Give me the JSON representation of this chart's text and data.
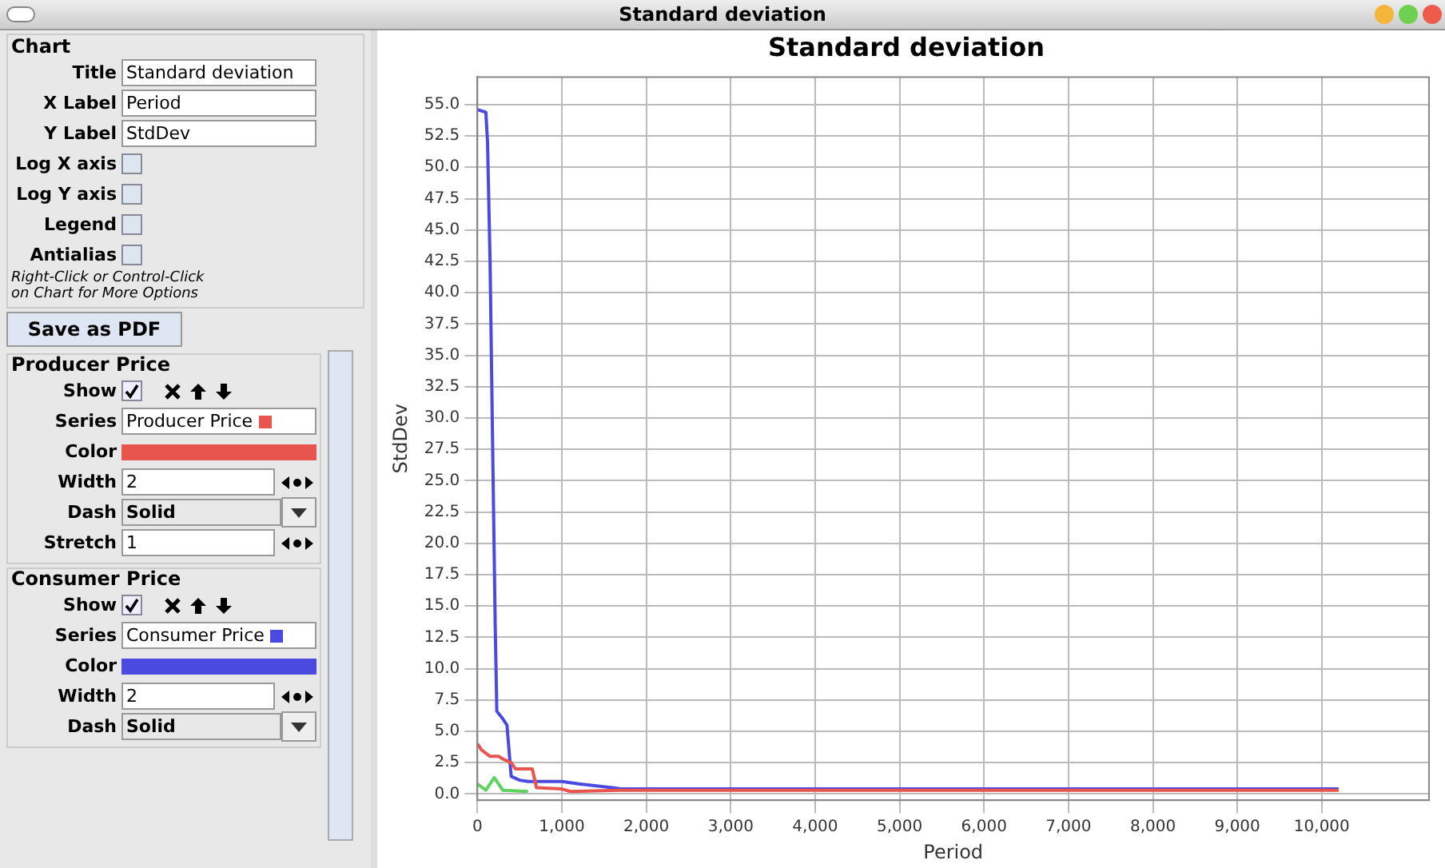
{
  "chart_data": {
    "type": "line",
    "title": "Standard deviation",
    "xlabel": "Period",
    "ylabel": "StdDev",
    "xlim": [
      0,
      11270
    ],
    "ylim": [
      -0.5,
      57.2
    ],
    "xticks": [
      0,
      {
        "value": 1000,
        "label": "1,000"
      },
      {
        "value": 2000,
        "label": "2,000"
      },
      {
        "value": 3000,
        "label": "3,000"
      },
      {
        "value": 4000,
        "label": "4,000"
      },
      {
        "value": 5000,
        "label": "5,000"
      },
      {
        "value": 6000,
        "label": "6,000"
      },
      {
        "value": 7000,
        "label": "7,000"
      },
      {
        "value": 8000,
        "label": "8,000"
      },
      {
        "value": 9000,
        "label": "9,000"
      },
      {
        "value": 10000,
        "label": "10,000"
      }
    ],
    "yticks": [
      {
        "value": 0,
        "label": "0.0"
      },
      2.5,
      {
        "value": 5,
        "label": "5.0"
      },
      7.5,
      {
        "value": 10,
        "label": "10.0"
      },
      12.5,
      {
        "value": 15,
        "label": "15.0"
      },
      17.5,
      {
        "value": 20,
        "label": "20.0"
      },
      22.5,
      {
        "value": 25,
        "label": "25.0"
      },
      27.5,
      {
        "value": 30,
        "label": "30.0"
      },
      32.5,
      {
        "value": 35,
        "label": "35.0"
      },
      37.5,
      {
        "value": 40,
        "label": "40.0"
      },
      42.5,
      {
        "value": 45,
        "label": "45.0"
      },
      47.5,
      {
        "value": 50,
        "label": "50.0"
      },
      52.5,
      {
        "value": 55,
        "label": "55.0"
      }
    ],
    "grid": true,
    "legend": "left",
    "line_style": "solid",
    "marker": "none",
    "series": [
      {
        "name": "Producer Price",
        "color": "#e8554e",
        "x": [
          0,
          50,
          150,
          250,
          300,
          400,
          450,
          650,
          700,
          1000,
          1100,
          1700,
          10200
        ],
        "values": [
          4,
          3.5,
          3.0,
          3.0,
          2.8,
          2.5,
          2.0,
          2.0,
          0.5,
          0.4,
          0.2,
          0.3,
          0.3
        ]
      },
      {
        "name": "Consumer Price",
        "color": "#4a4ae0",
        "x": [
          0,
          100,
          120,
          150,
          170,
          190,
          210,
          230,
          300,
          350,
          400,
          500,
          600,
          1000,
          1200,
          1600,
          1700,
          10200
        ],
        "values": [
          54.6,
          54.4,
          52,
          42.5,
          32.8,
          23.3,
          13.8,
          6.6,
          6.0,
          5.5,
          1.4,
          1.1,
          1.0,
          1.0,
          0.8,
          0.5,
          0.4,
          0.4
        ]
      },
      {
        "color": "#5fd35f",
        "x": [
          0,
          100,
          200,
          300,
          600
        ],
        "values": [
          0.8,
          0.3,
          1.3,
          0.3,
          0.2
        ]
      }
    ],
    "annotations": [
      "Chart",
      "Title",
      "X Label",
      "Y Label",
      "Log X axis",
      "Log Y axis",
      "Legend",
      "Antialias",
      "Right-Click or Control-Click",
      "on Chart for More Options",
      "Save as PDF",
      "Show",
      "Series",
      "Color",
      "Width",
      "2",
      "Dash",
      "Solid",
      "Stretch",
      "1",
      "Show",
      "Series",
      "Color",
      "Width",
      "2",
      "Dash",
      "Solid"
    ]
  }
}
